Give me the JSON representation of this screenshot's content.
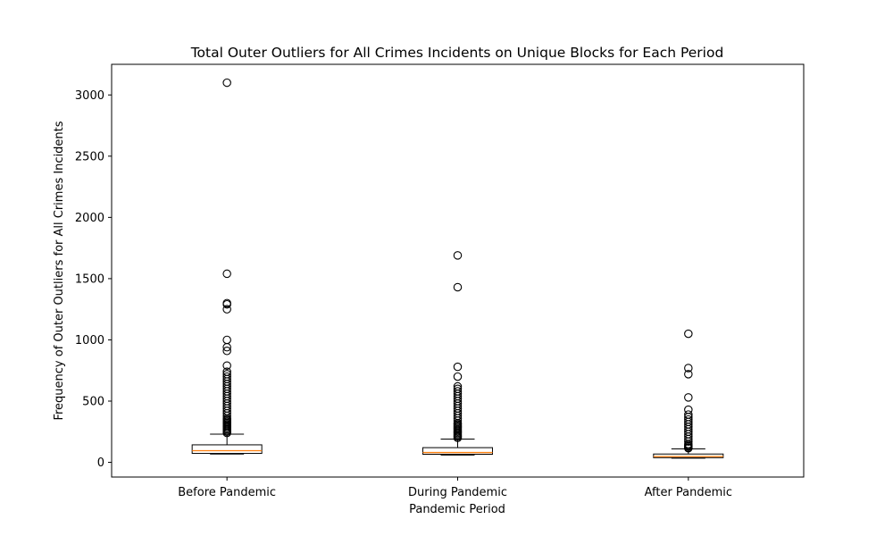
{
  "chart_data": {
    "type": "boxplot",
    "title": "Total Outer Outliers for All Crimes Incidents on Unique Blocks for Each Period",
    "xlabel": "Pandemic Period",
    "ylabel": "Frequency of Outer Outliers for All Crimes Incidents",
    "ylim": [
      -120,
      3250
    ],
    "yticks": [
      0,
      500,
      1000,
      1500,
      2000,
      2500,
      3000
    ],
    "grid": false,
    "legend": "none",
    "colors": {
      "box_edge": "#000000",
      "median": "#ff7f0e",
      "outlier_edge": "#000000"
    },
    "categories": [
      "Before Pandemic",
      "During Pandemic",
      "After Pandemic"
    ],
    "boxes": [
      {
        "category": "Before Pandemic",
        "whisker_low": 68,
        "q1": 73,
        "median": 95,
        "q3": 143,
        "whisker_high": 230,
        "outliers": [
          3100,
          1540,
          1300,
          1290,
          1250,
          1000,
          940,
          910,
          790,
          740,
          720,
          700,
          680,
          660,
          640,
          620,
          600,
          580,
          560,
          540,
          520,
          500,
          480,
          460,
          440,
          420,
          400,
          380,
          360,
          350,
          340,
          330,
          320,
          310,
          300,
          290,
          280,
          270,
          260,
          250,
          240
        ]
      },
      {
        "category": "During Pandemic",
        "whisker_low": 60,
        "q1": 66,
        "median": 80,
        "q3": 120,
        "whisker_high": 190,
        "outliers": [
          1690,
          1430,
          780,
          700,
          620,
          600,
          580,
          560,
          540,
          520,
          500,
          480,
          460,
          440,
          420,
          400,
          380,
          360,
          340,
          320,
          310,
          300,
          290,
          280,
          270,
          260,
          250,
          240,
          230,
          220,
          210,
          200
        ]
      },
      {
        "category": "After Pandemic",
        "whisker_low": 34,
        "q1": 38,
        "median": 48,
        "q3": 68,
        "whisker_high": 110,
        "outliers": [
          1050,
          770,
          720,
          530,
          430,
          390,
          370,
          350,
          330,
          310,
          290,
          270,
          250,
          230,
          210,
          190,
          170,
          150,
          140,
          130,
          120,
          115
        ]
      }
    ]
  }
}
